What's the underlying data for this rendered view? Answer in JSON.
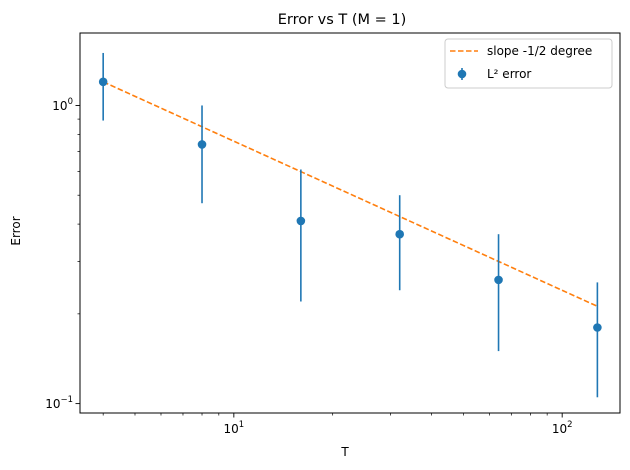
{
  "chart_data": {
    "type": "scatter",
    "title": "Error vs T   (M = 1)",
    "xlabel": "T",
    "ylabel": "Error",
    "xscale": "log",
    "yscale": "log",
    "xlim": [
      3.4,
      150
    ],
    "ylim": [
      0.093,
      1.75
    ],
    "grid": false,
    "legend_position": "top-right",
    "x_major_ticks": [
      {
        "value": 10,
        "base": "10",
        "exp": "1"
      },
      {
        "value": 100,
        "base": "10",
        "exp": "2"
      }
    ],
    "y_major_ticks": [
      {
        "value": 0.1,
        "base": "10",
        "exp": "−1"
      },
      {
        "value": 1,
        "base": "10",
        "exp": "0"
      }
    ],
    "x_minor_ticks": [
      4,
      5,
      6,
      7,
      8,
      9,
      20,
      30,
      40,
      50,
      60,
      70,
      80,
      90
    ],
    "y_minor_ticks": [
      0.2,
      0.3,
      0.4,
      0.5,
      0.6,
      0.7,
      0.8,
      0.9
    ],
    "series": [
      {
        "name": "L² error",
        "kind": "errorbar",
        "color": "#1f77b4",
        "points": [
          {
            "x": 4,
            "y": 1.2,
            "ylo": 0.89,
            "yhi": 1.5
          },
          {
            "x": 8,
            "y": 0.74,
            "ylo": 0.47,
            "yhi": 1.0
          },
          {
            "x": 16,
            "y": 0.41,
            "ylo": 0.22,
            "yhi": 0.61
          },
          {
            "x": 32,
            "y": 0.37,
            "ylo": 0.24,
            "yhi": 0.5
          },
          {
            "x": 64,
            "y": 0.26,
            "ylo": 0.15,
            "yhi": 0.37
          },
          {
            "x": 128,
            "y": 0.18,
            "ylo": 0.105,
            "yhi": 0.255
          }
        ]
      },
      {
        "name": "slope -1/2 degree",
        "kind": "line",
        "style": "dashed",
        "color": "#ff7f0e",
        "x": [
          4,
          128
        ],
        "y": [
          1.2,
          0.212
        ]
      }
    ]
  }
}
